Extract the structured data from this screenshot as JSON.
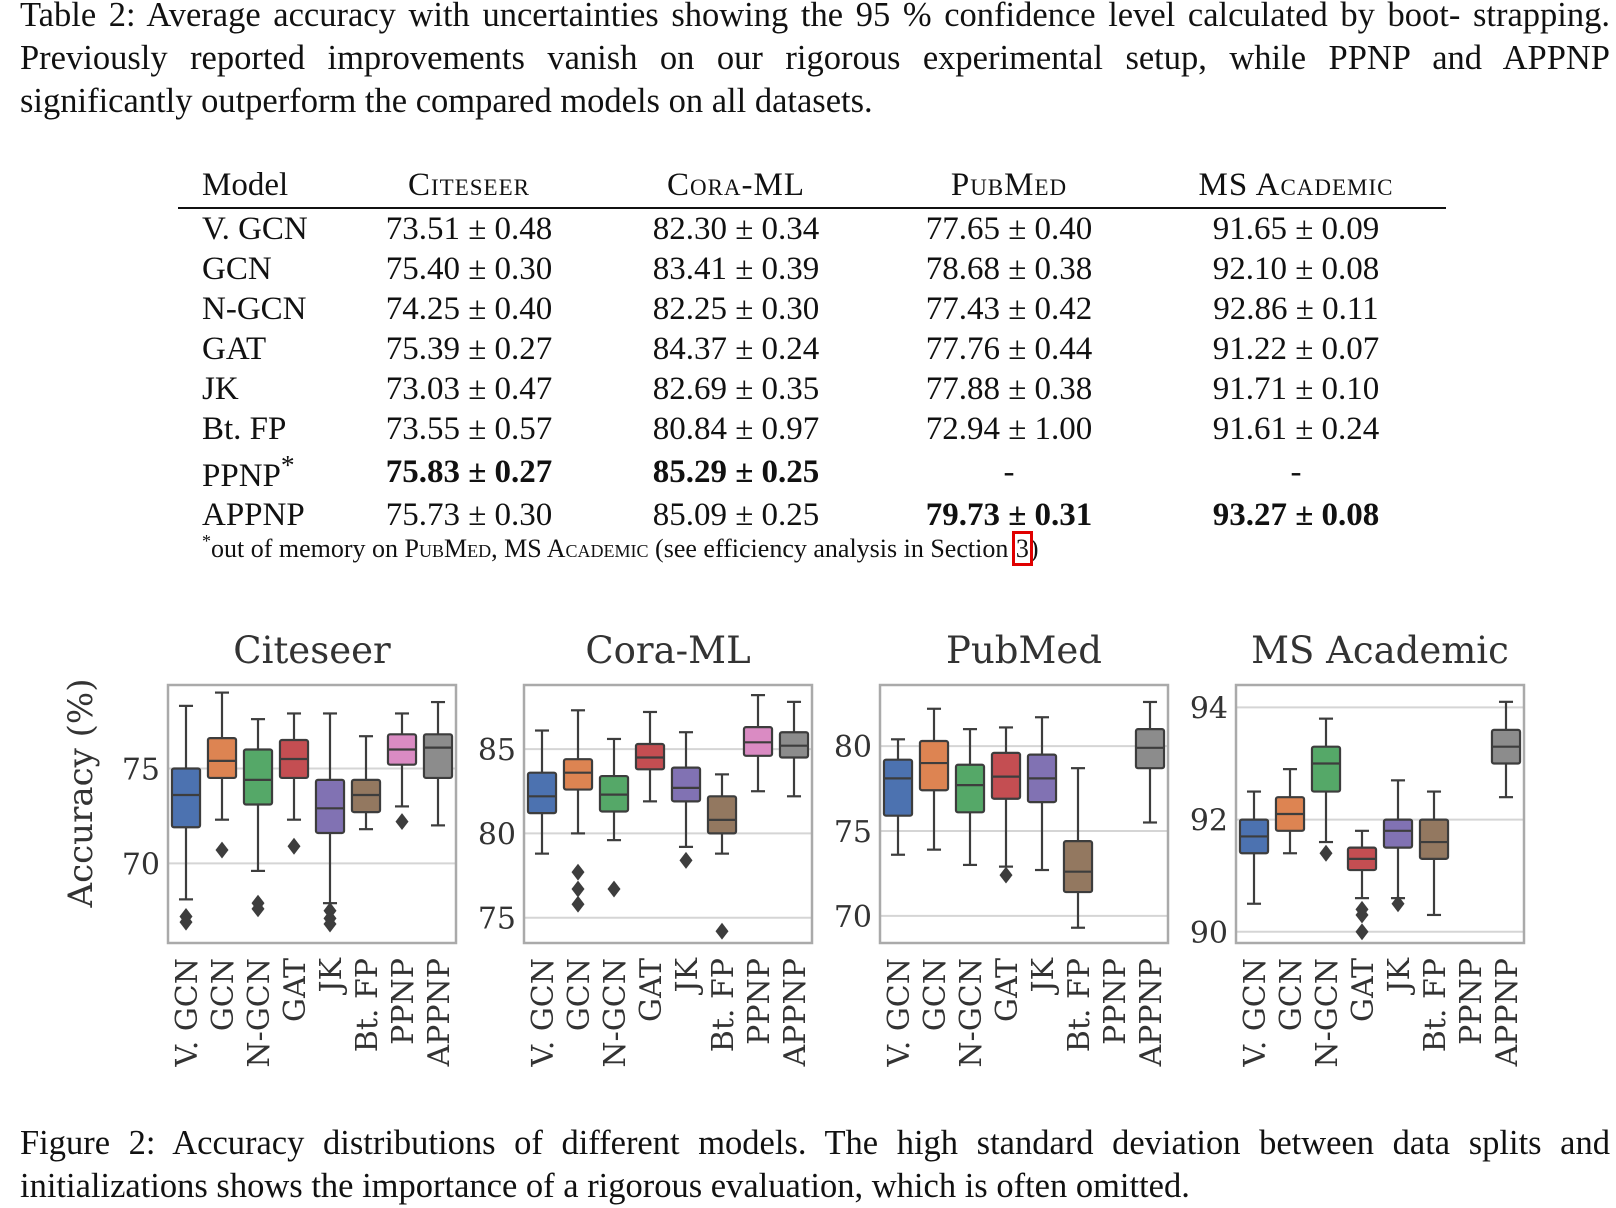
{
  "table_caption": "Table 2: Average accuracy with uncertainties showing the 95 % confidence level calculated by boot- strapping. Previously reported improvements vanish on our rigorous experimental setup, while PPNP and APPNP significantly outperform the compared models on all datasets.",
  "table": {
    "headers": [
      "Model",
      "Citeseer",
      "Cora-ML",
      "PubMed",
      "MS Academic"
    ],
    "rows": [
      {
        "model": "V. GCN",
        "cells": [
          "73.51 ± 0.48",
          "82.30 ± 0.34",
          "77.65 ± 0.40",
          "91.65 ± 0.09"
        ]
      },
      {
        "model": "GCN",
        "cells": [
          "75.40 ± 0.30",
          "83.41 ± 0.39",
          "78.68 ± 0.38",
          "92.10 ± 0.08"
        ]
      },
      {
        "model": "N-GCN",
        "cells": [
          "74.25 ± 0.40",
          "82.25 ± 0.30",
          "77.43 ± 0.42",
          "92.86 ± 0.11"
        ]
      },
      {
        "model": "GAT",
        "cells": [
          "75.39 ± 0.27",
          "84.37 ± 0.24",
          "77.76 ± 0.44",
          "91.22 ± 0.07"
        ]
      },
      {
        "model": "JK",
        "cells": [
          "73.03 ± 0.47",
          "82.69 ± 0.35",
          "77.88 ± 0.38",
          "91.71 ± 0.10"
        ]
      },
      {
        "model": "Bt. FP",
        "cells": [
          "73.55 ± 0.57",
          "80.84 ± 0.97",
          "72.94 ± 1.00",
          "91.61 ± 0.24"
        ]
      },
      {
        "model": "PPNP",
        "marker": "*",
        "cells": [
          "75.83 ± 0.27",
          "85.29 ± 0.25",
          "-",
          "-"
        ]
      },
      {
        "model": "APPNP",
        "cells": [
          "75.73 ± 0.30",
          "85.09 ± 0.25",
          "79.73 ± 0.31",
          "93.27 ± 0.08"
        ]
      }
    ],
    "footnote": {
      "marker": "*",
      "text_before": "out of memory on ",
      "pubmed": "PubMed",
      "separator": ", ",
      "ms_academic": "MS Academic",
      "text_middle": " (see efficiency analysis in Section ",
      "section_ref": "3",
      "text_after": ")"
    }
  },
  "figure_caption": "Figure 2: Accuracy distributions of different models. The high standard deviation between data splits and initializations shows the importance of a rigorous evaluation, which is often omitted.",
  "figure": {
    "ylabel": "Accuracy (%)",
    "categories": [
      "V. GCN",
      "GCN",
      "N-GCN",
      "GAT",
      "JK",
      "Bt. FP",
      "PPNP",
      "APPNP"
    ],
    "colors": [
      "#4c72b0",
      "#dd8452",
      "#55a868",
      "#c44e52",
      "#8172b3",
      "#937860",
      "#da8bc3",
      "#8c8c8c"
    ]
  },
  "chart_data": [
    {
      "type": "box",
      "title": "Citeseer",
      "ylabel": "Accuracy (%)",
      "ylim": [
        65.8,
        79.4
      ],
      "yticks": [
        70,
        75
      ],
      "categories": [
        "V. GCN",
        "GCN",
        "N-GCN",
        "GAT",
        "JK",
        "Bt. FP",
        "PPNP",
        "APPNP"
      ],
      "boxes": [
        {
          "min": 68.1,
          "q1": 71.9,
          "median": 73.6,
          "q3": 75.0,
          "max": 78.3,
          "outliers": [
            67.2,
            66.9
          ]
        },
        {
          "min": 72.3,
          "q1": 74.5,
          "median": 75.4,
          "q3": 76.6,
          "max": 79.0,
          "outliers": [
            70.7
          ]
        },
        {
          "min": 69.6,
          "q1": 73.1,
          "median": 74.4,
          "q3": 76.0,
          "max": 77.6,
          "outliers": [
            67.9,
            67.6
          ]
        },
        {
          "min": 72.3,
          "q1": 74.5,
          "median": 75.5,
          "q3": 76.5,
          "max": 77.9,
          "outliers": [
            70.9
          ]
        },
        {
          "min": 67.9,
          "q1": 71.6,
          "median": 72.9,
          "q3": 74.4,
          "max": 77.9,
          "outliers": [
            67.5,
            67.1,
            66.8
          ]
        },
        {
          "min": 71.8,
          "q1": 72.7,
          "median": 73.6,
          "q3": 74.4,
          "max": 76.7,
          "outliers": []
        },
        {
          "min": 73.0,
          "q1": 75.2,
          "median": 76.0,
          "q3": 76.8,
          "max": 77.9,
          "outliers": [
            72.2
          ]
        },
        {
          "min": 72.0,
          "q1": 74.5,
          "median": 76.1,
          "q3": 76.8,
          "max": 78.5,
          "outliers": []
        }
      ]
    },
    {
      "type": "box",
      "title": "Cora-ML",
      "ylim": [
        73.5,
        88.8
      ],
      "yticks": [
        75,
        80,
        85
      ],
      "categories": [
        "V. GCN",
        "GCN",
        "N-GCN",
        "GAT",
        "JK",
        "Bt. FP",
        "PPNP",
        "APPNP"
      ],
      "boxes": [
        {
          "min": 78.8,
          "q1": 81.2,
          "median": 82.2,
          "q3": 83.6,
          "max": 86.1,
          "outliers": []
        },
        {
          "min": 80.0,
          "q1": 82.6,
          "median": 83.6,
          "q3": 84.4,
          "max": 87.3,
          "outliers": [
            77.7,
            76.7,
            75.8
          ]
        },
        {
          "min": 79.6,
          "q1": 81.3,
          "median": 82.3,
          "q3": 83.4,
          "max": 85.6,
          "outliers": [
            76.7
          ]
        },
        {
          "min": 81.9,
          "q1": 83.8,
          "median": 84.5,
          "q3": 85.3,
          "max": 87.2,
          "outliers": []
        },
        {
          "min": 79.2,
          "q1": 81.9,
          "median": 82.7,
          "q3": 83.9,
          "max": 86.0,
          "outliers": [
            78.4
          ]
        },
        {
          "min": 78.8,
          "q1": 80.0,
          "median": 80.8,
          "q3": 82.2,
          "max": 83.5,
          "outliers": [
            74.2
          ]
        },
        {
          "min": 82.5,
          "q1": 84.6,
          "median": 85.4,
          "q3": 86.3,
          "max": 88.2,
          "outliers": []
        },
        {
          "min": 82.2,
          "q1": 84.5,
          "median": 85.2,
          "q3": 86.0,
          "max": 87.8,
          "outliers": []
        }
      ]
    },
    {
      "type": "box",
      "title": "PubMed",
      "ylim": [
        68.4,
        83.6
      ],
      "yticks": [
        70,
        75,
        80
      ],
      "categories": [
        "V. GCN",
        "GCN",
        "N-GCN",
        "GAT",
        "JK",
        "Bt. FP",
        "PPNP",
        "APPNP"
      ],
      "boxes": [
        {
          "min": 73.6,
          "q1": 75.9,
          "median": 78.1,
          "q3": 79.2,
          "max": 80.4,
          "outliers": []
        },
        {
          "min": 73.9,
          "q1": 77.4,
          "median": 79.0,
          "q3": 80.3,
          "max": 82.2,
          "outliers": []
        },
        {
          "min": 73.0,
          "q1": 76.1,
          "median": 77.7,
          "q3": 78.9,
          "max": 81.0,
          "outliers": []
        },
        {
          "min": 72.9,
          "q1": 76.9,
          "median": 78.2,
          "q3": 79.6,
          "max": 81.1,
          "outliers": [
            72.4
          ]
        },
        {
          "min": 72.7,
          "q1": 76.7,
          "median": 78.1,
          "q3": 79.5,
          "max": 81.7,
          "outliers": []
        },
        {
          "min": 69.3,
          "q1": 71.4,
          "median": 72.6,
          "q3": 74.4,
          "max": 78.7,
          "outliers": []
        },
        null,
        {
          "min": 75.5,
          "q1": 78.7,
          "median": 79.9,
          "q3": 81.0,
          "max": 82.6,
          "outliers": []
        }
      ]
    },
    {
      "type": "box",
      "title": "MS Academic",
      "ylim": [
        89.8,
        94.4
      ],
      "yticks": [
        90,
        92,
        94
      ],
      "categories": [
        "V. GCN",
        "GCN",
        "N-GCN",
        "GAT",
        "JK",
        "Bt. FP",
        "PPNP",
        "APPNP"
      ],
      "boxes": [
        {
          "min": 90.5,
          "q1": 91.4,
          "median": 91.7,
          "q3": 92.0,
          "max": 92.5,
          "outliers": []
        },
        {
          "min": 91.4,
          "q1": 91.8,
          "median": 92.1,
          "q3": 92.4,
          "max": 92.9,
          "outliers": []
        },
        {
          "min": 91.6,
          "q1": 92.5,
          "median": 93.0,
          "q3": 93.3,
          "max": 93.8,
          "outliers": [
            91.4
          ]
        },
        {
          "min": 90.6,
          "q1": 91.1,
          "median": 91.3,
          "q3": 91.5,
          "max": 91.8,
          "outliers": [
            90.4,
            90.3,
            90.0
          ]
        },
        {
          "min": 90.6,
          "q1": 91.5,
          "median": 91.8,
          "q3": 92.0,
          "max": 92.7,
          "outliers": [
            90.5
          ]
        },
        {
          "min": 90.3,
          "q1": 91.3,
          "median": 91.6,
          "q3": 92.0,
          "max": 92.5,
          "outliers": []
        },
        null,
        {
          "min": 92.4,
          "q1": 93.0,
          "median": 93.3,
          "q3": 93.6,
          "max": 94.1,
          "outliers": []
        }
      ]
    }
  ]
}
